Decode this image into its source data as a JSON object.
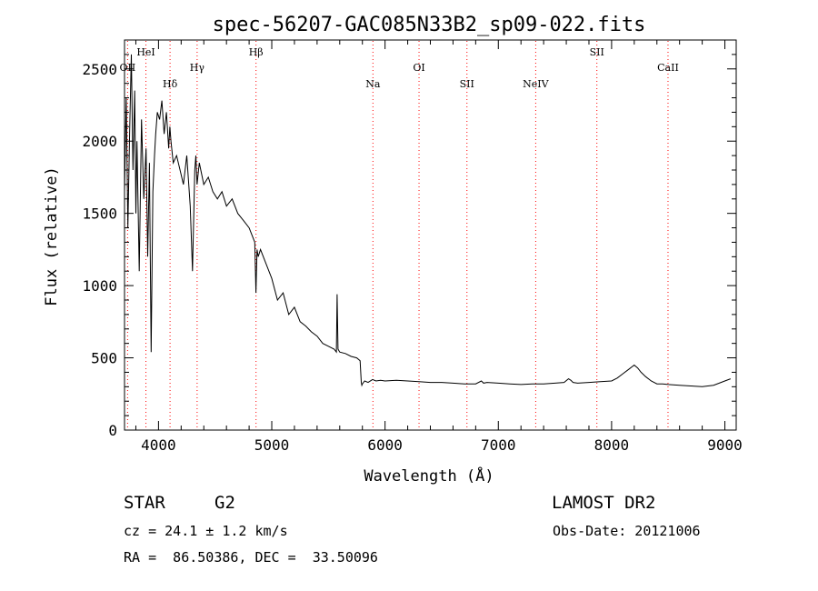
{
  "chart_data": {
    "type": "line",
    "title": "spec-56207-GAC085N33B2_sp09-022.fits",
    "xlabel": "Wavelength (Å)",
    "ylabel": "Flux (relative)",
    "xlim": [
      3700,
      9100
    ],
    "ylim": [
      0,
      2700
    ],
    "xticks": [
      4000,
      5000,
      6000,
      7000,
      8000,
      9000
    ],
    "yticks": [
      0,
      500,
      1000,
      1500,
      2000,
      2500
    ],
    "grid": false,
    "line_color": "#000000",
    "marker_color": "#ff0000",
    "series": [
      {
        "x": [
          3700,
          3715,
          3730,
          3745,
          3760,
          3775,
          3790,
          3800,
          3810,
          3830,
          3850,
          3870,
          3890,
          3905,
          3920,
          3935,
          3950,
          3965,
          3975,
          3990,
          4010,
          4030,
          4050,
          4070,
          4090,
          4100,
          4110,
          4130,
          4160,
          4190,
          4220,
          4250,
          4280,
          4300,
          4320,
          4330,
          4340,
          4360,
          4400,
          4440,
          4480,
          4520,
          4560,
          4600,
          4650,
          4700,
          4750,
          4800,
          4850,
          4860,
          4870,
          4880,
          4900,
          4950,
          5000,
          5050,
          5100,
          5150,
          5200,
          5250,
          5300,
          5350,
          5400,
          5450,
          5500,
          5550,
          5570,
          5577,
          5585,
          5600,
          5650,
          5700,
          5750,
          5780,
          5790,
          5795,
          5800,
          5820,
          5850,
          5890,
          5920,
          5960,
          6000,
          6100,
          6200,
          6300,
          6400,
          6500,
          6600,
          6700,
          6800,
          6850,
          6870,
          6900,
          7000,
          7100,
          7200,
          7300,
          7400,
          7500,
          7580,
          7620,
          7640,
          7660,
          7700,
          7800,
          7900,
          8000,
          8050,
          8100,
          8150,
          8200,
          8230,
          8260,
          8300,
          8350,
          8400,
          8450,
          8500,
          8600,
          8700,
          8800,
          8900,
          8950,
          9000,
          9050
        ],
        "y": [
          1650,
          2300,
          1400,
          2050,
          2600,
          1800,
          2350,
          1500,
          2000,
          1100,
          2150,
          1600,
          1950,
          1200,
          1850,
          540,
          1650,
          1900,
          2050,
          2200,
          2150,
          2280,
          2050,
          2200,
          1950,
          2100,
          2000,
          1850,
          1900,
          1800,
          1700,
          1900,
          1550,
          1100,
          1800,
          1900,
          1700,
          1850,
          1700,
          1750,
          1650,
          1600,
          1650,
          1550,
          1600,
          1500,
          1450,
          1400,
          1300,
          950,
          1250,
          1200,
          1250,
          1150,
          1050,
          900,
          950,
          800,
          850,
          750,
          720,
          680,
          650,
          600,
          580,
          560,
          540,
          940,
          560,
          540,
          530,
          510,
          500,
          480,
          330,
          310,
          320,
          340,
          330,
          350,
          340,
          345,
          340,
          345,
          340,
          335,
          330,
          330,
          325,
          320,
          320,
          340,
          325,
          330,
          325,
          320,
          315,
          320,
          320,
          325,
          330,
          355,
          345,
          330,
          325,
          330,
          335,
          340,
          360,
          390,
          420,
          450,
          430,
          400,
          370,
          340,
          320,
          320,
          315,
          310,
          305,
          300,
          310,
          325,
          340,
          355
        ]
      }
    ],
    "line_markers": [
      {
        "label": "OII",
        "x": 3727,
        "row": 2
      },
      {
        "label": "HeI",
        "x": 3889,
        "row": 1
      },
      {
        "label": "Hδ",
        "x": 4102,
        "row": 3
      },
      {
        "label": "Hγ",
        "x": 4341,
        "row": 2
      },
      {
        "label": "Hβ",
        "x": 4861,
        "row": 1
      },
      {
        "label": "Na",
        "x": 5893,
        "row": 3
      },
      {
        "label": "OI",
        "x": 6300,
        "row": 2
      },
      {
        "label": "SII",
        "x": 6723,
        "row": 3
      },
      {
        "label": "NeIV",
        "x": 7330,
        "row": 3
      },
      {
        "label": "SII",
        "x": 7870,
        "row": 1
      },
      {
        "label": "CaII",
        "x": 8498,
        "row": 2
      }
    ]
  },
  "info": {
    "object_class": "STAR",
    "subclass": "G2",
    "survey": "LAMOST DR2",
    "redshift_text": "cz = 24.1 ± 1.2 km/s",
    "obs_date_text": "Obs-Date: 20121006",
    "coords_text": "RA =  86.50386, DEC =  33.50096"
  }
}
